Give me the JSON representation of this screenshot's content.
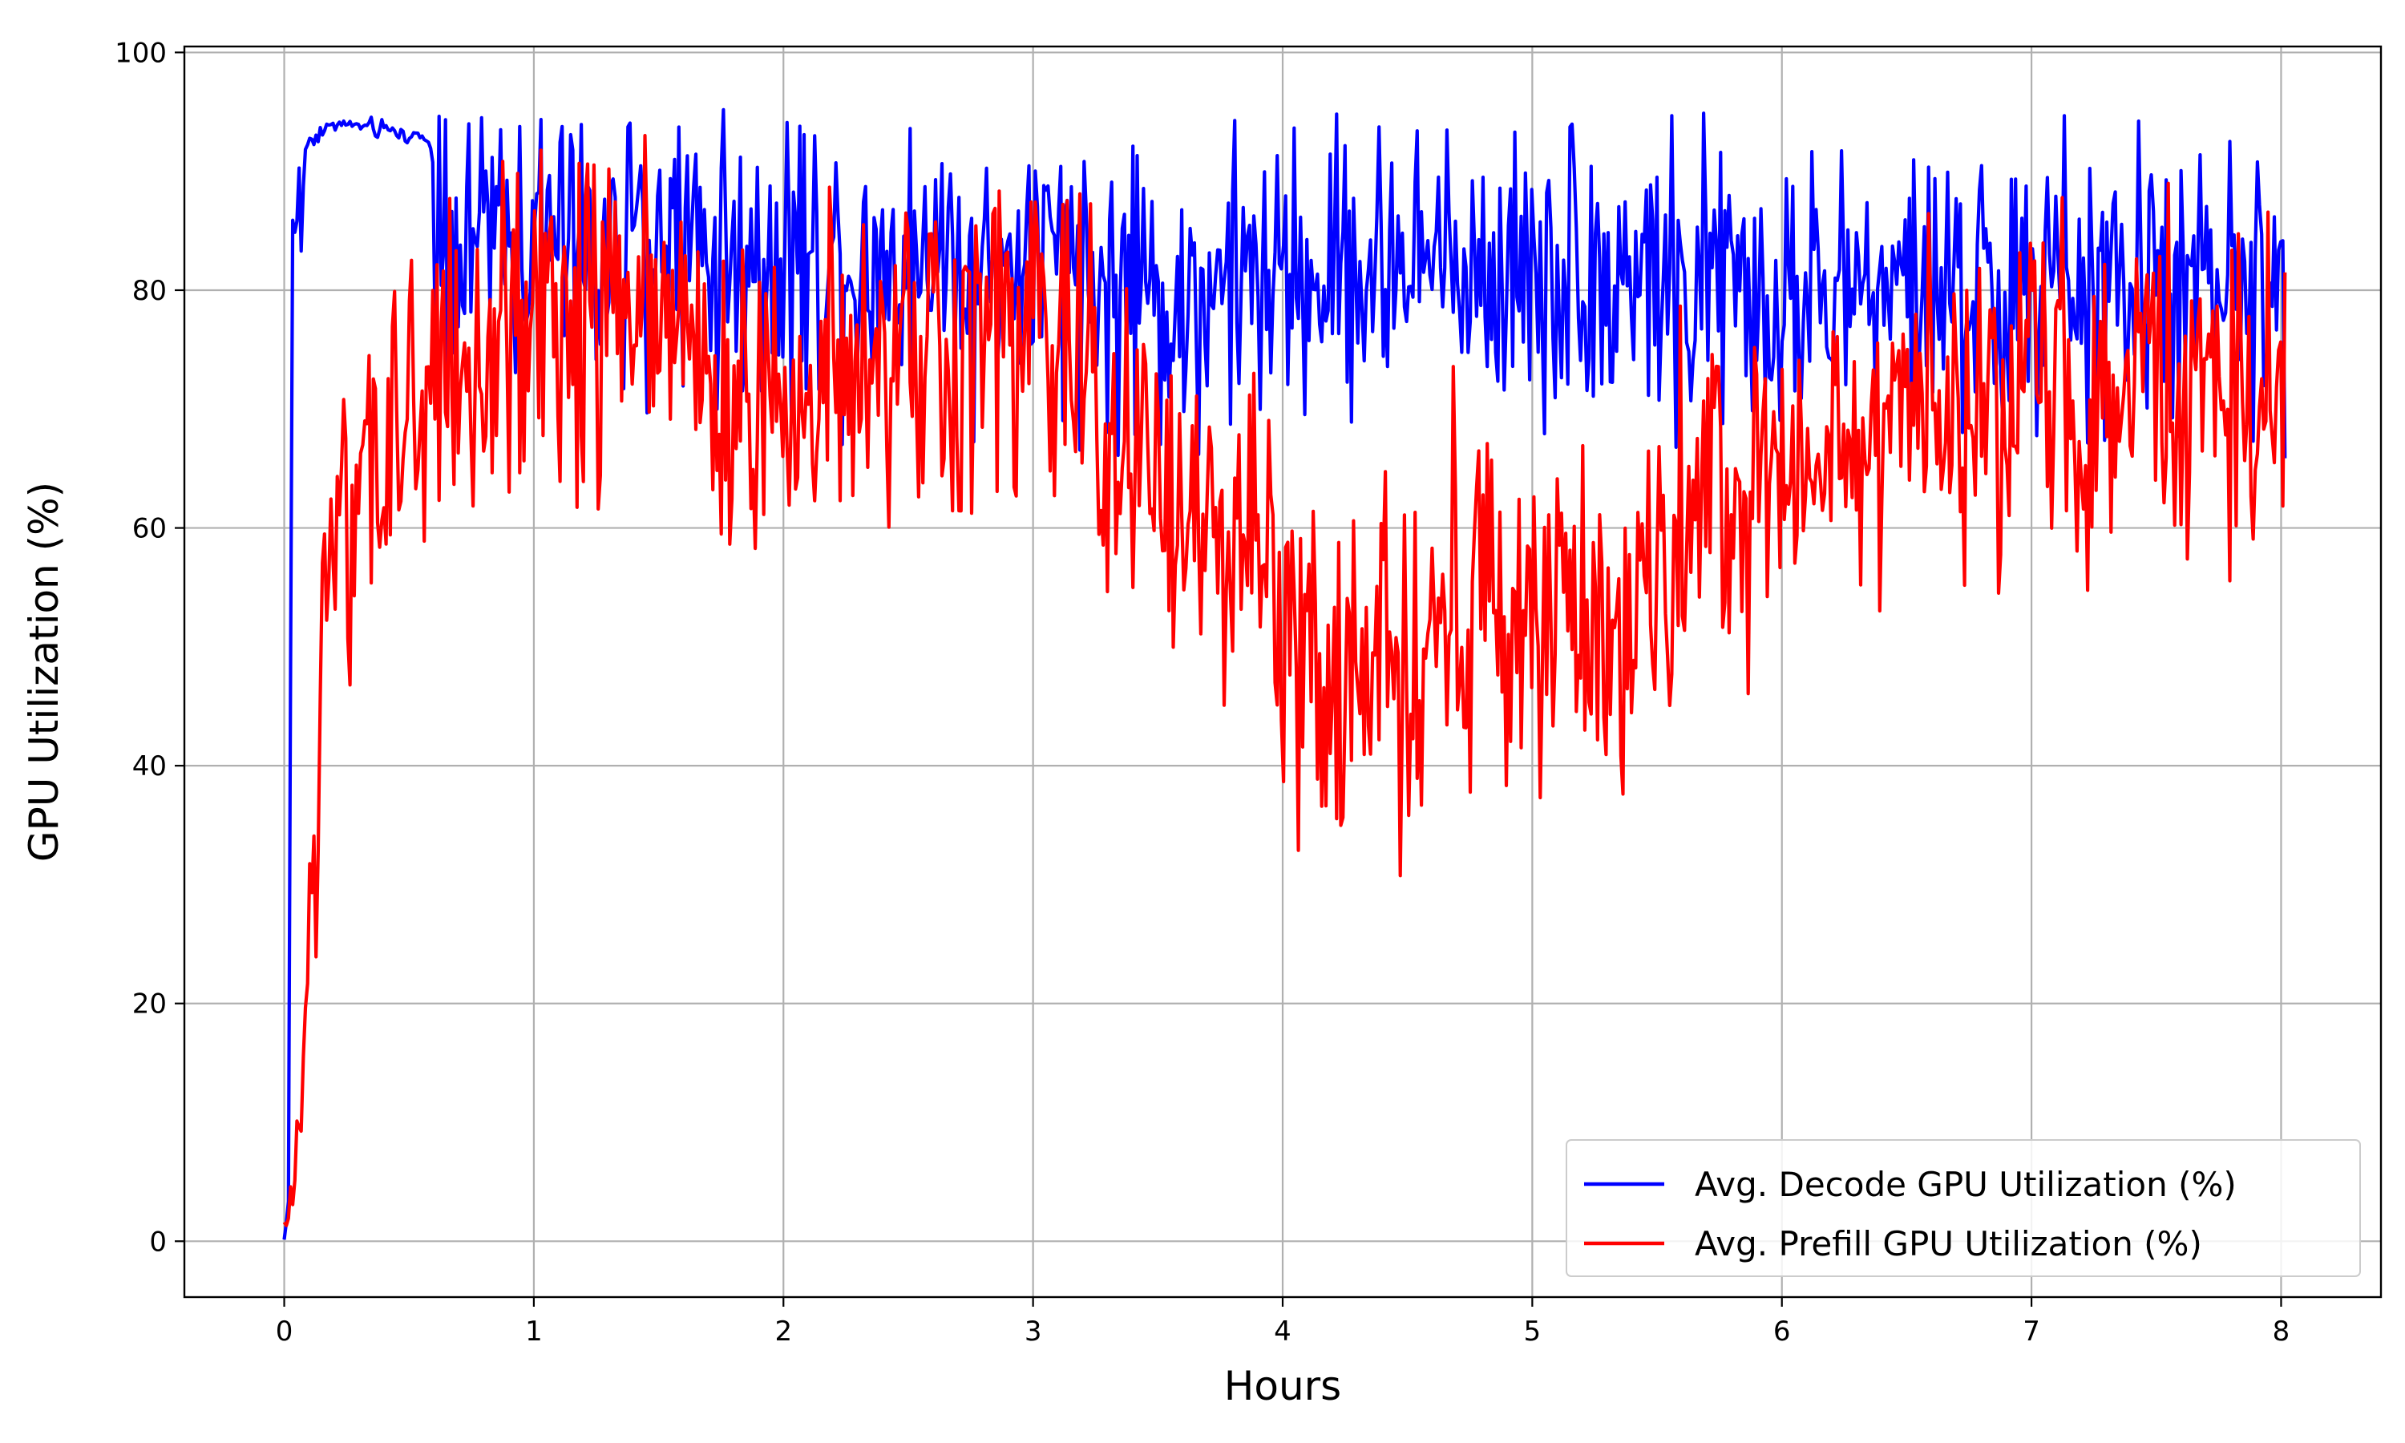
{
  "chart_data": {
    "type": "line",
    "title": "",
    "xlabel": "Hours",
    "ylabel": "GPU Utilization (%)",
    "xlim": [
      -0.4,
      8.4
    ],
    "ylim": [
      -4.7,
      100.5
    ],
    "xticks": [
      0,
      1,
      2,
      3,
      4,
      5,
      6,
      7,
      8
    ],
    "yticks": [
      0,
      20,
      40,
      60,
      80,
      100
    ],
    "grid": true,
    "legend_position": "lower-right",
    "series": [
      {
        "name": "Avg. Decode GPU Utilization (%)",
        "color": "#0000ff",
        "anchors": [
          [
            0,
            0
          ],
          [
            0.02,
            4
          ],
          [
            0.03,
            86
          ],
          [
            0.05,
            85
          ],
          [
            0.06,
            90
          ],
          [
            0.07,
            82
          ],
          [
            0.08,
            92
          ],
          [
            0.12,
            93
          ],
          [
            0.2,
            94
          ],
          [
            0.3,
            93.8
          ],
          [
            0.4,
            93.5
          ],
          [
            0.5,
            93
          ],
          [
            0.58,
            92.8
          ],
          [
            0.6,
            90
          ],
          [
            0.62,
            86
          ],
          [
            0.8,
            86
          ],
          [
            1.0,
            84
          ],
          [
            1.5,
            84
          ],
          [
            2.0,
            83
          ],
          [
            2.5,
            83
          ],
          [
            3.0,
            82
          ],
          [
            3.3,
            80
          ],
          [
            3.5,
            79
          ],
          [
            4.0,
            81
          ],
          [
            4.5,
            82
          ],
          [
            5.0,
            82
          ],
          [
            5.5,
            81
          ],
          [
            6.0,
            80
          ],
          [
            6.5,
            80
          ],
          [
            7.0,
            80
          ],
          [
            7.5,
            80
          ],
          [
            8.02,
            80
          ]
        ],
        "noise_amplitude": 6
      },
      {
        "name": "Avg. Prefill GPU Utilization (%)",
        "color": "#ff0000",
        "anchors": [
          [
            0,
            0.5
          ],
          [
            0.02,
            0.5
          ],
          [
            0.04,
            5
          ],
          [
            0.06,
            10
          ],
          [
            0.08,
            17
          ],
          [
            0.1,
            30
          ],
          [
            0.15,
            45
          ],
          [
            0.2,
            55
          ],
          [
            0.3,
            62
          ],
          [
            0.4,
            65
          ],
          [
            0.5,
            68
          ],
          [
            0.6,
            72
          ],
          [
            0.8,
            73
          ],
          [
            1.0,
            75
          ],
          [
            1.2,
            77
          ],
          [
            1.4,
            79
          ],
          [
            1.5,
            78
          ],
          [
            1.7,
            74
          ],
          [
            2.0,
            71
          ],
          [
            2.5,
            73
          ],
          [
            2.8,
            75
          ],
          [
            3.0,
            76
          ],
          [
            3.2,
            73
          ],
          [
            3.4,
            66
          ],
          [
            3.6,
            63
          ],
          [
            3.8,
            60
          ],
          [
            4.0,
            53
          ],
          [
            4.2,
            47
          ],
          [
            4.5,
            50
          ],
          [
            4.8,
            52
          ],
          [
            5.0,
            51
          ],
          [
            5.2,
            50
          ],
          [
            5.4,
            53
          ],
          [
            5.6,
            58
          ],
          [
            5.8,
            62
          ],
          [
            6.0,
            66
          ],
          [
            6.2,
            68
          ],
          [
            6.5,
            70
          ],
          [
            7.0,
            71
          ],
          [
            7.5,
            72
          ],
          [
            8.02,
            73
          ]
        ],
        "noise_amplitude": 7
      }
    ]
  }
}
